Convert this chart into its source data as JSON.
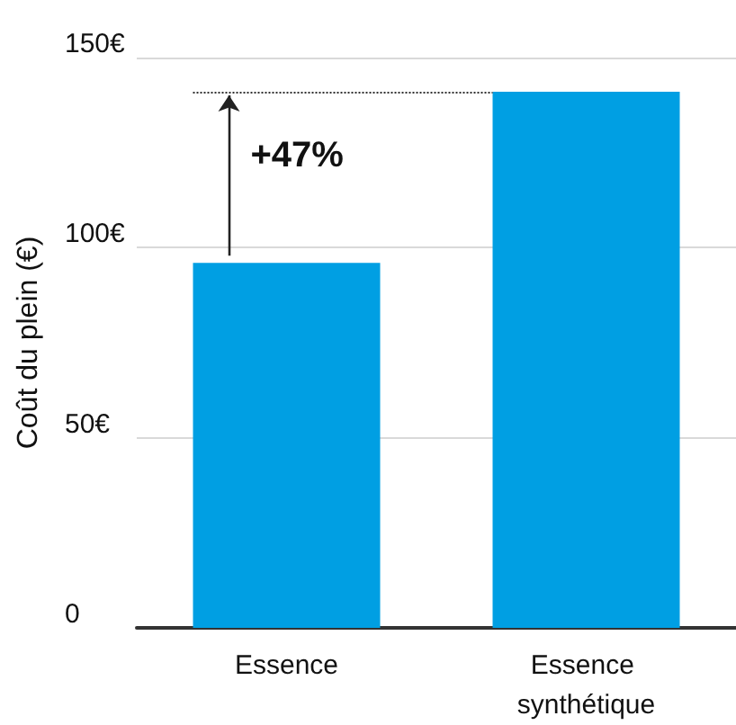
{
  "chart_data": {
    "type": "bar",
    "ylabel": "Coût du plein (€)",
    "categories": [
      "Essence",
      "Essence synthétique"
    ],
    "values": [
      96,
      141
    ],
    "color": "#009fe3",
    "ylim": [
      0,
      150
    ],
    "yticks": [
      {
        "value": 0,
        "label": "0"
      },
      {
        "value": 50,
        "label": "50€"
      },
      {
        "value": 100,
        "label": "100€"
      },
      {
        "value": 150,
        "label": "150€"
      }
    ],
    "grid": "y",
    "ref_lines": [
      {
        "axis": "y",
        "value": 141,
        "line_style": "dotted",
        "color": "#333333"
      }
    ],
    "annotations": [
      "+47%"
    ]
  }
}
